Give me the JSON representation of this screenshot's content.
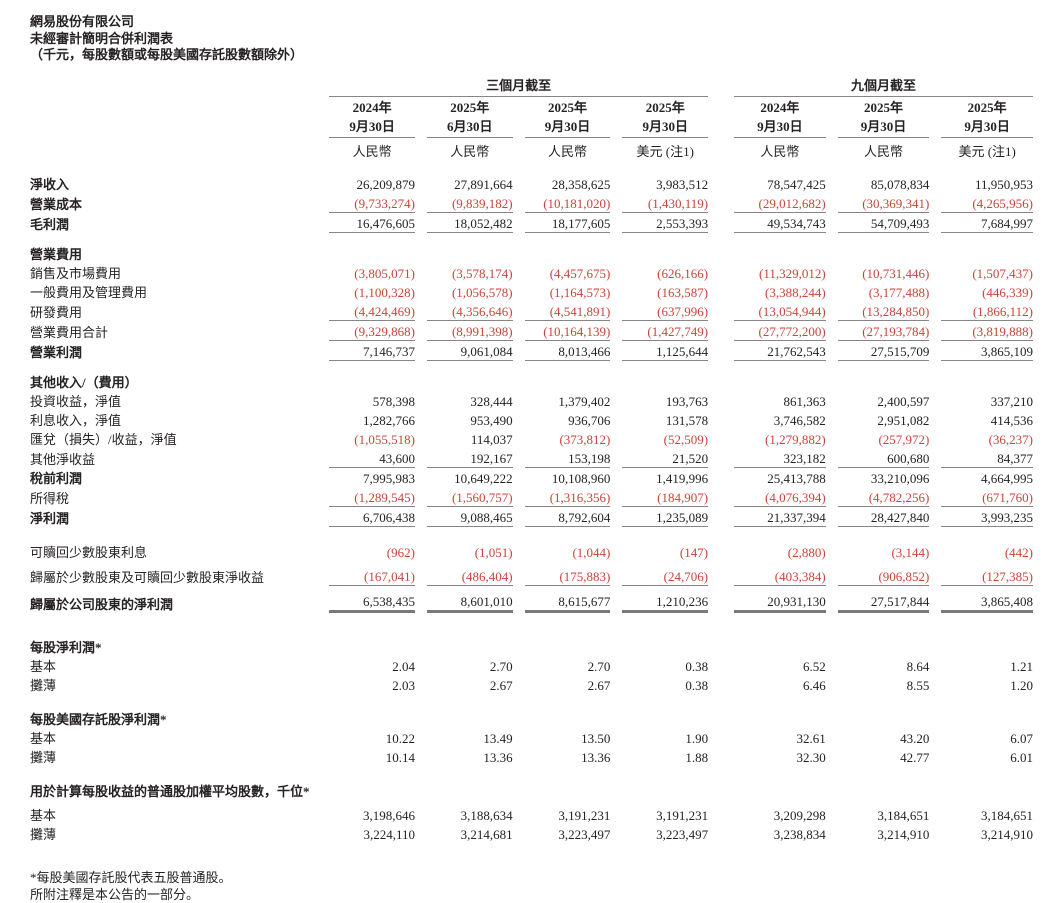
{
  "header": {
    "company": "網易股份有限公司",
    "statement_title": "未經審計簡明合併利潤表",
    "unit_note": "（千元，每股數額或每股美國存託股數額除外）"
  },
  "table": {
    "groups": [
      {
        "label": "三個月截至",
        "span": 4
      },
      {
        "label": "九個月截至",
        "span": 3
      }
    ],
    "columns": [
      {
        "year": "2024年",
        "date": "9月30日",
        "currency": "人民幣"
      },
      {
        "year": "2025年",
        "date": "6月30日",
        "currency": "人民幣"
      },
      {
        "year": "2025年",
        "date": "9月30日",
        "currency": "人民幣"
      },
      {
        "year": "2025年",
        "date": "9月30日",
        "currency": "美元 (注1)"
      },
      {
        "year": "2024年",
        "date": "9月30日",
        "currency": "人民幣"
      },
      {
        "year": "2025年",
        "date": "9月30日",
        "currency": "人民幣"
      },
      {
        "year": "2025年",
        "date": "9月30日",
        "currency": "美元 (注1)"
      }
    ],
    "rows": [
      {
        "type": "data",
        "label": "淨收入",
        "bold": true,
        "rule": "none",
        "values": [
          "26,209,879",
          "27,891,664",
          "28,358,625",
          "3,983,512",
          "78,547,425",
          "85,078,834",
          "11,950,953"
        ]
      },
      {
        "type": "data",
        "label": "營業成本",
        "bold": true,
        "rule": "single",
        "values": [
          "(9,733,274)",
          "(9,839,182)",
          "(10,181,020)",
          "(1,430,119)",
          "(29,012,682)",
          "(30,369,341)",
          "(4,265,956)"
        ]
      },
      {
        "type": "data",
        "label": "毛利潤",
        "bold": true,
        "rule": "single",
        "values": [
          "16,476,605",
          "18,052,482",
          "18,177,605",
          "2,553,393",
          "49,534,743",
          "54,709,493",
          "7,684,997"
        ]
      },
      {
        "type": "gap",
        "size": "sm"
      },
      {
        "type": "section",
        "label": "營業費用"
      },
      {
        "type": "data",
        "label": "銷售及市場費用",
        "bold": false,
        "rule": "none",
        "values": [
          "(3,805,071)",
          "(3,578,174)",
          "(4,457,675)",
          "(626,166)",
          "(11,329,012)",
          "(10,731,446)",
          "(1,507,437)"
        ]
      },
      {
        "type": "data",
        "label": "一般費用及管理費用",
        "bold": false,
        "rule": "none",
        "values": [
          "(1,100,328)",
          "(1,056,578)",
          "(1,164,573)",
          "(163,587)",
          "(3,388,244)",
          "(3,177,488)",
          "(446,339)"
        ]
      },
      {
        "type": "data",
        "label": "研發費用",
        "bold": false,
        "rule": "single",
        "values": [
          "(4,424,469)",
          "(4,356,646)",
          "(4,541,891)",
          "(637,996)",
          "(13,054,944)",
          "(13,284,850)",
          "(1,866,112)"
        ]
      },
      {
        "type": "data",
        "label": "營業費用合計",
        "bold": false,
        "rule": "single",
        "values": [
          "(9,329,868)",
          "(8,991,398)",
          "(10,164,139)",
          "(1,427,749)",
          "(27,772,200)",
          "(27,193,784)",
          "(3,819,888)"
        ]
      },
      {
        "type": "data",
        "label": "營業利潤",
        "bold": true,
        "rule": "single",
        "values": [
          "7,146,737",
          "9,061,084",
          "8,013,466",
          "1,125,644",
          "21,762,543",
          "27,515,709",
          "3,865,109"
        ]
      },
      {
        "type": "gap",
        "size": "sm"
      },
      {
        "type": "section",
        "label": "其他收入/（費用）"
      },
      {
        "type": "data",
        "label": "投資收益，淨值",
        "bold": false,
        "rule": "none",
        "values": [
          "578,398",
          "328,444",
          "1,379,402",
          "193,763",
          "861,363",
          "2,400,597",
          "337,210"
        ]
      },
      {
        "type": "data",
        "label": "利息收入，淨值",
        "bold": false,
        "rule": "none",
        "values": [
          "1,282,766",
          "953,490",
          "936,706",
          "131,578",
          "3,746,582",
          "2,951,082",
          "414,536"
        ]
      },
      {
        "type": "data",
        "label": "匯兌（損失）/收益，淨值",
        "bold": false,
        "rule": "none",
        "values": [
          "(1,055,518)",
          "114,037",
          "(373,812)",
          "(52,509)",
          "(1,279,882)",
          "(257,972)",
          "(36,237)"
        ]
      },
      {
        "type": "data",
        "label": "其他淨收益",
        "bold": false,
        "rule": "single",
        "values": [
          "43,600",
          "192,167",
          "153,198",
          "21,520",
          "323,182",
          "600,680",
          "84,377"
        ]
      },
      {
        "type": "data",
        "label": "稅前利潤",
        "bold": true,
        "rule": "none",
        "values": [
          "7,995,983",
          "10,649,222",
          "10,108,960",
          "1,419,996",
          "25,413,788",
          "33,210,096",
          "4,664,995"
        ]
      },
      {
        "type": "data",
        "label": "所得稅",
        "bold": false,
        "rule": "single",
        "values": [
          "(1,289,545)",
          "(1,560,757)",
          "(1,316,356)",
          "(184,907)",
          "(4,076,394)",
          "(4,782,256)",
          "(671,760)"
        ]
      },
      {
        "type": "data",
        "label": "淨利潤",
        "bold": true,
        "rule": "single",
        "values": [
          "6,706,438",
          "9,088,465",
          "8,792,604",
          "1,235,089",
          "21,337,394",
          "28,427,840",
          "3,993,235"
        ]
      },
      {
        "type": "gap",
        "size": "md"
      },
      {
        "type": "data",
        "label": "可贖回少數股東利息",
        "bold": false,
        "rule": "none",
        "values": [
          "(962)",
          "(1,051)",
          "(1,044)",
          "(147)",
          "(2,880)",
          "(3,144)",
          "(442)"
        ]
      },
      {
        "type": "gap",
        "size": "xs"
      },
      {
        "type": "data",
        "label": "歸屬於少數股東及可贖回少數股東淨收益",
        "bold": false,
        "rule": "single",
        "values": [
          "(167,041)",
          "(486,404)",
          "(175,883)",
          "(24,706)",
          "(403,384)",
          "(906,852)",
          "(127,385)"
        ]
      },
      {
        "type": "gap",
        "size": "xs"
      },
      {
        "type": "data",
        "label": "歸屬於公司股東的淨利潤",
        "bold": true,
        "rule": "thick",
        "values": [
          "6,538,435",
          "8,601,010",
          "8,615,677",
          "1,210,236",
          "20,931,130",
          "27,517,844",
          "3,865,408"
        ]
      },
      {
        "type": "gap",
        "size": "xl"
      },
      {
        "type": "section",
        "label": "每股淨利潤*"
      },
      {
        "type": "data",
        "label": "基本",
        "bold": false,
        "rule": "none",
        "values": [
          "2.04",
          "2.70",
          "2.70",
          "0.38",
          "6.52",
          "8.64",
          "1.21"
        ]
      },
      {
        "type": "data",
        "label": "攤薄",
        "bold": false,
        "rule": "none",
        "values": [
          "2.03",
          "2.67",
          "2.67",
          "0.38",
          "6.46",
          "8.55",
          "1.20"
        ]
      },
      {
        "type": "gap",
        "size": "md"
      },
      {
        "type": "section",
        "label": "每股美國存託股淨利潤*"
      },
      {
        "type": "data",
        "label": "基本",
        "bold": false,
        "rule": "none",
        "values": [
          "10.22",
          "13.49",
          "13.50",
          "1.90",
          "32.61",
          "43.20",
          "6.07"
        ]
      },
      {
        "type": "data",
        "label": "攤薄",
        "bold": false,
        "rule": "none",
        "values": [
          "10.14",
          "13.36",
          "13.36",
          "1.88",
          "32.30",
          "42.77",
          "6.01"
        ]
      },
      {
        "type": "gap",
        "size": "md"
      },
      {
        "type": "section",
        "label": "用於計算每股收益的普通股加權平均股數，千位*"
      },
      {
        "type": "gap",
        "size": "xs"
      },
      {
        "type": "data",
        "label": "基本",
        "bold": false,
        "rule": "none",
        "values": [
          "3,198,646",
          "3,188,634",
          "3,191,231",
          "3,191,231",
          "3,209,298",
          "3,184,651",
          "3,184,651"
        ]
      },
      {
        "type": "data",
        "label": "攤薄",
        "bold": false,
        "rule": "none",
        "values": [
          "3,224,110",
          "3,214,681",
          "3,223,497",
          "3,223,497",
          "3,238,834",
          "3,214,910",
          "3,214,910"
        ]
      }
    ]
  },
  "footnotes": [
    "*每股美國存託股代表五股普通股。",
    "所附注釋是本公告的一部分。"
  ],
  "colors": {
    "negative": "#cf4238",
    "rule": "#878586",
    "text": "#262223"
  }
}
